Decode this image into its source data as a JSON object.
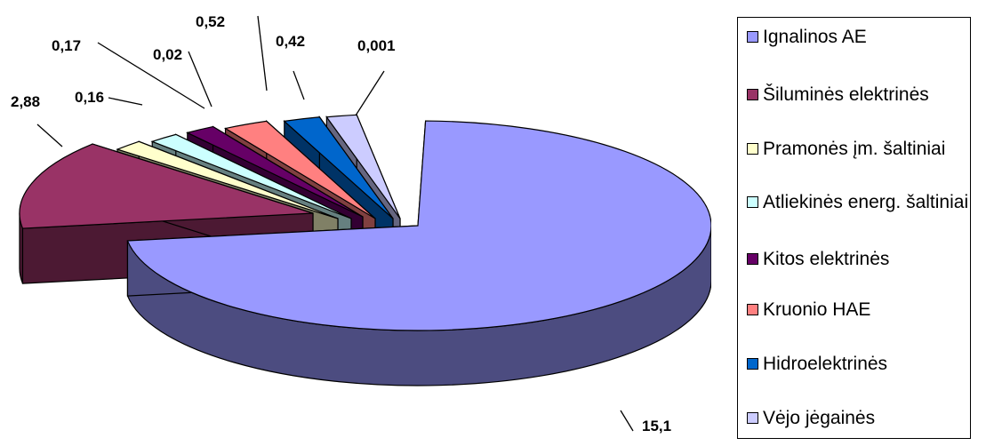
{
  "chart_data": {
    "type": "pie",
    "title": "",
    "three_d": true,
    "exploded": true,
    "legend_position": "right",
    "slices": [
      {
        "name": "Ignalinos AE",
        "value": 15.1,
        "label": "15,1",
        "color": "#9999ff",
        "side_color": "#4c4c80"
      },
      {
        "name": "Šiluminės elektrinės",
        "value": 2.88,
        "label": "2,88",
        "color": "#993366",
        "side_color": "#4c1933"
      },
      {
        "name": "Pramonės įm. šaltiniai",
        "value": 0.16,
        "label": "0,16",
        "color": "#ffffcc",
        "side_color": "#808066"
      },
      {
        "name": "Atliekinės energ. šaltiniai",
        "value": 0.17,
        "label": "0,17",
        "color": "#ccffff",
        "side_color": "#668080"
      },
      {
        "name": "Kitos elektrinės",
        "value": 0.02,
        "label": "0,02",
        "color": "#660066",
        "side_color": "#330033"
      },
      {
        "name": "Kruonio HAE",
        "value": 0.52,
        "label": "0,52",
        "color": "#ff8080",
        "side_color": "#804040"
      },
      {
        "name": "Hidroelektrinės",
        "value": 0.42,
        "label": "0,42",
        "color": "#0066cc",
        "side_color": "#003366"
      },
      {
        "name": "Vėjo jėgainės",
        "value": 0.001,
        "label": "0,001",
        "color": "#ccccff",
        "side_color": "#666680"
      }
    ]
  }
}
